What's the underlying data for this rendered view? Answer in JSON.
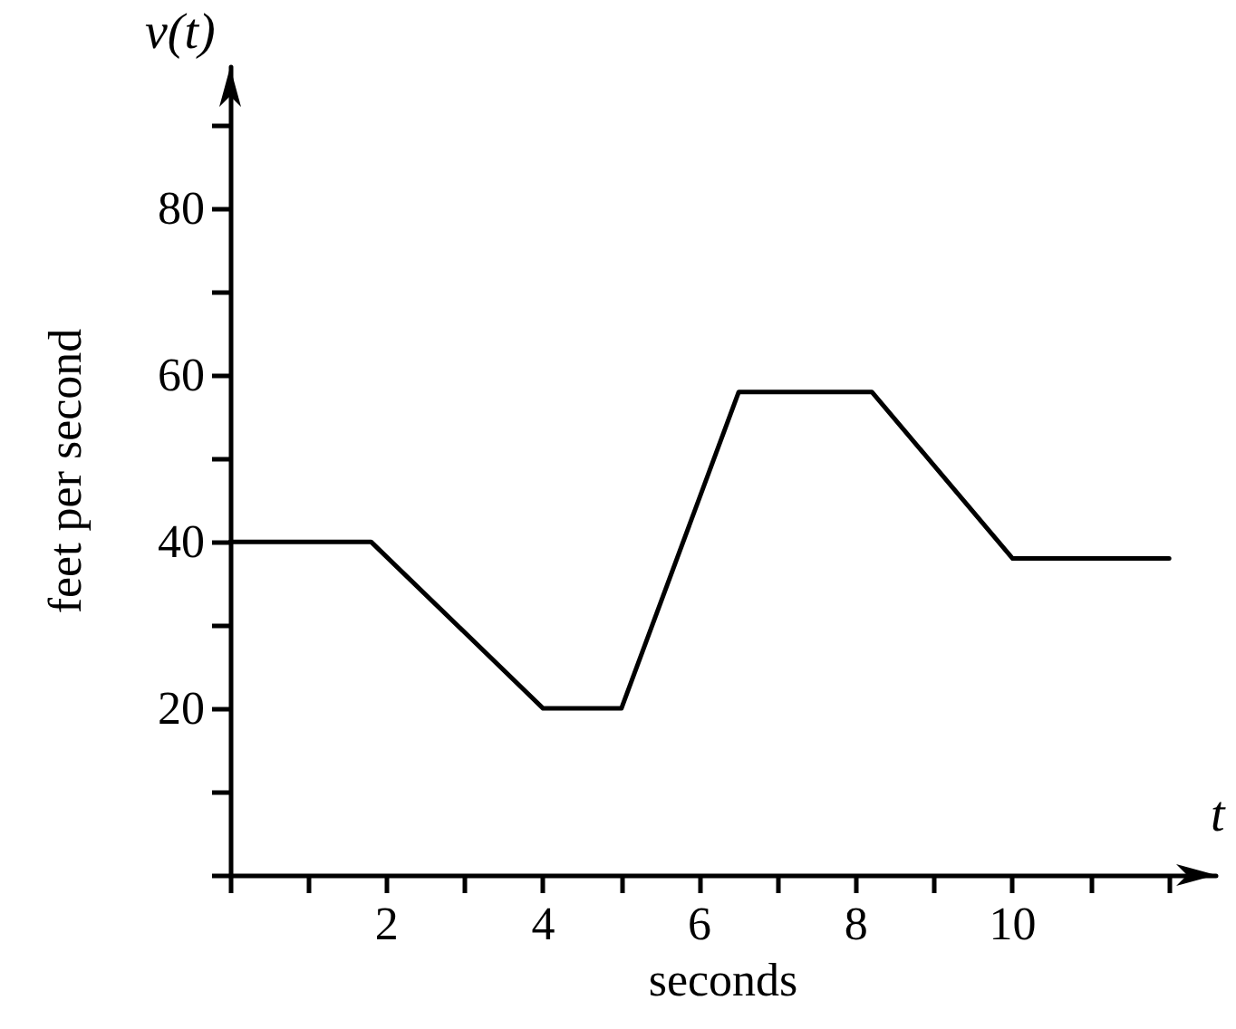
{
  "chart_data": {
    "type": "line",
    "xlabel": "seconds",
    "ylabel": "feet per second",
    "annotations": [
      "v(t)",
      "t"
    ],
    "x": [
      0,
      1.8,
      4,
      5,
      6.5,
      8.2,
      10,
      12
    ],
    "series": [
      {
        "color": "#000000",
        "values": [
          40,
          40,
          20,
          20,
          58,
          58,
          38,
          38
        ]
      }
    ],
    "xlim": [
      0,
      12.6
    ],
    "ylim": [
      0,
      97
    ],
    "xticks": [
      {
        "value": 0,
        "label": null
      },
      {
        "value": 1,
        "label": null
      },
      2,
      {
        "value": 3,
        "label": null
      },
      4,
      {
        "value": 5,
        "label": null
      },
      6,
      {
        "value": 7,
        "label": null
      },
      8,
      {
        "value": 9,
        "label": null
      },
      10,
      {
        "value": 11,
        "label": null
      },
      {
        "value": 12,
        "label": null
      }
    ],
    "yticks": [
      {
        "value": 0,
        "label": null
      },
      {
        "value": 10,
        "label": null
      },
      20,
      {
        "value": 30,
        "label": null
      },
      40,
      {
        "value": 50,
        "label": null
      },
      60,
      {
        "value": 70,
        "label": null
      },
      80,
      {
        "value": 90,
        "label": null
      }
    ],
    "marker": "none",
    "line_style": "solid"
  }
}
